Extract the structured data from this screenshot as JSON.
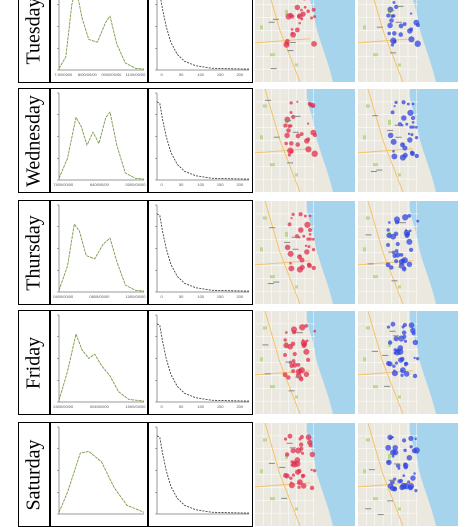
{
  "rows": [
    {
      "day": "Tuesday",
      "ts_ticks": [
        "7-9/00000",
        "8/00/00/00",
        "0000/00/00",
        "1100/00/00"
      ],
      "dist_ticks": [
        "0",
        "50",
        "100",
        "150",
        "200"
      ]
    },
    {
      "day": "Wednesday",
      "ts_ticks": [
        "7400/00/00",
        "840000/00",
        "0000/00/00"
      ],
      "dist_ticks": [
        "0",
        "50",
        "100",
        "150",
        "200"
      ]
    },
    {
      "day": "Thursday",
      "ts_ticks": [
        "0400/00/00",
        "0800/00/00",
        "1000/00/00"
      ],
      "dist_ticks": [
        "0",
        "50",
        "100",
        "150",
        "200"
      ]
    },
    {
      "day": "Friday",
      "ts_ticks": [
        "2400/00/00",
        "00400/000",
        "1000/00/00"
      ],
      "dist_ticks": [
        "0",
        "50",
        "100",
        "150",
        "200"
      ]
    },
    {
      "day": "Saturday",
      "ts_ticks": [],
      "dist_ticks": []
    }
  ],
  "colors": {
    "curve": "#7a9a4a",
    "dist_curve": "#444444",
    "lake": "#a6d4ec",
    "land": "#ebe8e0",
    "park": "#b9d98f",
    "cluster_red": "#e0304f",
    "cluster_blue": "#3046e0"
  }
}
